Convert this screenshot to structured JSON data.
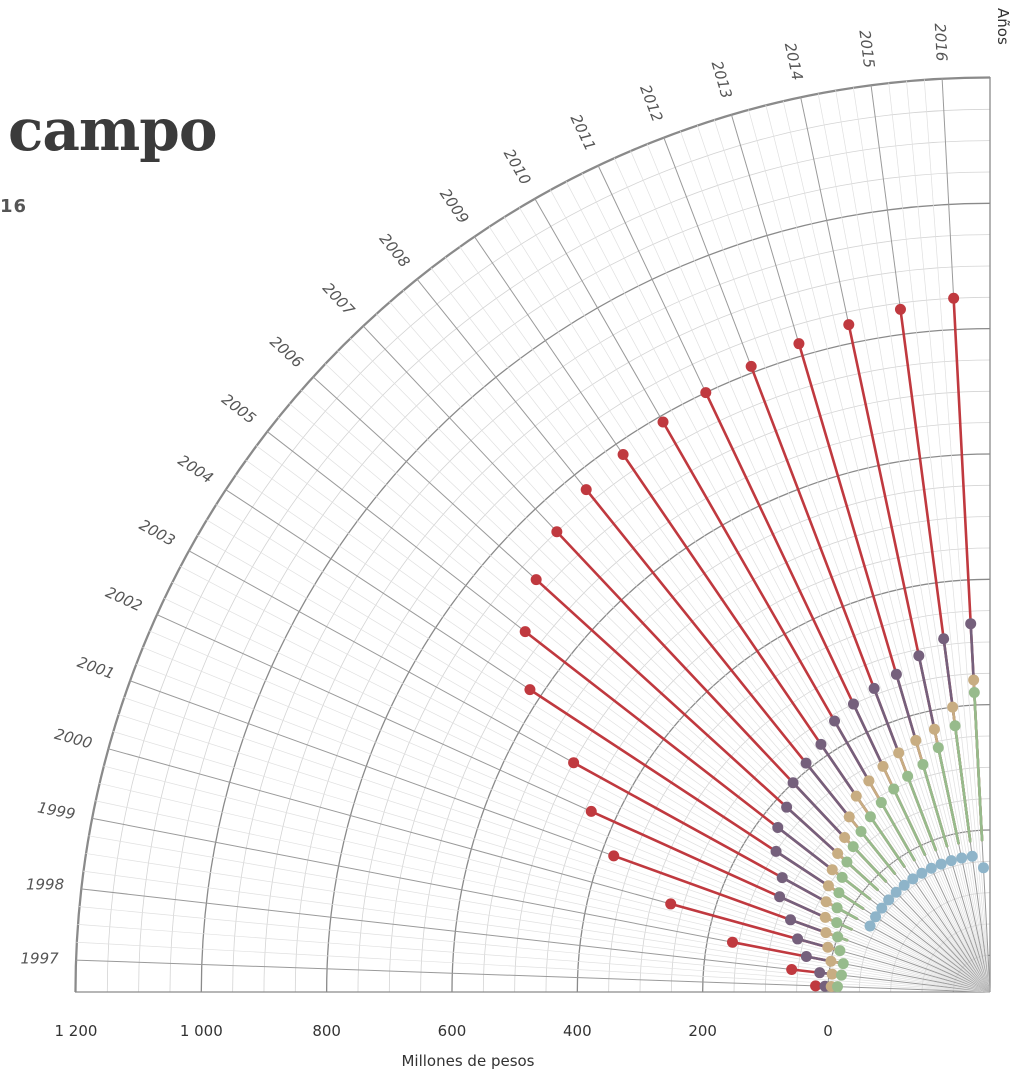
{
  "title": "campo",
  "subtitle": "16",
  "chart_data": {
    "type": "line",
    "layout": "radial-fan",
    "years": [
      "1997",
      "1998",
      "1999",
      "2000",
      "2001",
      "2002",
      "2003",
      "2004",
      "2005",
      "2006",
      "2007",
      "2008",
      "2009",
      "2010",
      "2011",
      "2012",
      "2013",
      "2014",
      "2015",
      "2016"
    ],
    "angular_axis_label": "Años",
    "radial_axis_label": "Millones de pesos",
    "radial_ticks": [
      1200,
      1000,
      800,
      600,
      400,
      200,
      0
    ],
    "radial_tick_labels": [
      "1 200",
      "1 000",
      "800",
      "600",
      "400",
      "200",
      "0"
    ],
    "radial_range": [
      -260,
      1200
    ],
    "series": [
      {
        "color": "#c0393f",
        "values": [
          20,
          60,
          160,
          270,
          380,
          440,
          500,
          620,
          680,
          720,
          750,
          770,
          780,
          790,
          800,
          810,
          820,
          830,
          840,
          850
        ]
      },
      {
        "color": "#75607c",
        "values": [
          5,
          15,
          40,
          60,
          80,
          110,
          120,
          150,
          170,
          180,
          200,
          210,
          220,
          240,
          250,
          260,
          270,
          290,
          310,
          330
        ]
      },
      {
        "color": "#c8ad82",
        "values": [
          -5,
          -5,
          0,
          10,
          20,
          30,
          40,
          50,
          60,
          70,
          80,
          100,
          120,
          130,
          140,
          150,
          160,
          170,
          200,
          240
        ]
      },
      {
        "color": "#97bb8c",
        "values": [
          -15,
          -20,
          -20,
          -10,
          0,
          10,
          20,
          30,
          40,
          50,
          60,
          70,
          80,
          90,
          100,
          110,
          120,
          140,
          170,
          220
        ]
      },
      {
        "color": "#8eb4c9",
        "values": [
          null,
          null,
          null,
          null,
          null,
          null,
          -40,
          -40,
          -40,
          -40,
          -40,
          -40,
          -40,
          -40,
          -40,
          -40,
          -40,
          -40,
          -40,
          -60
        ]
      }
    ]
  }
}
